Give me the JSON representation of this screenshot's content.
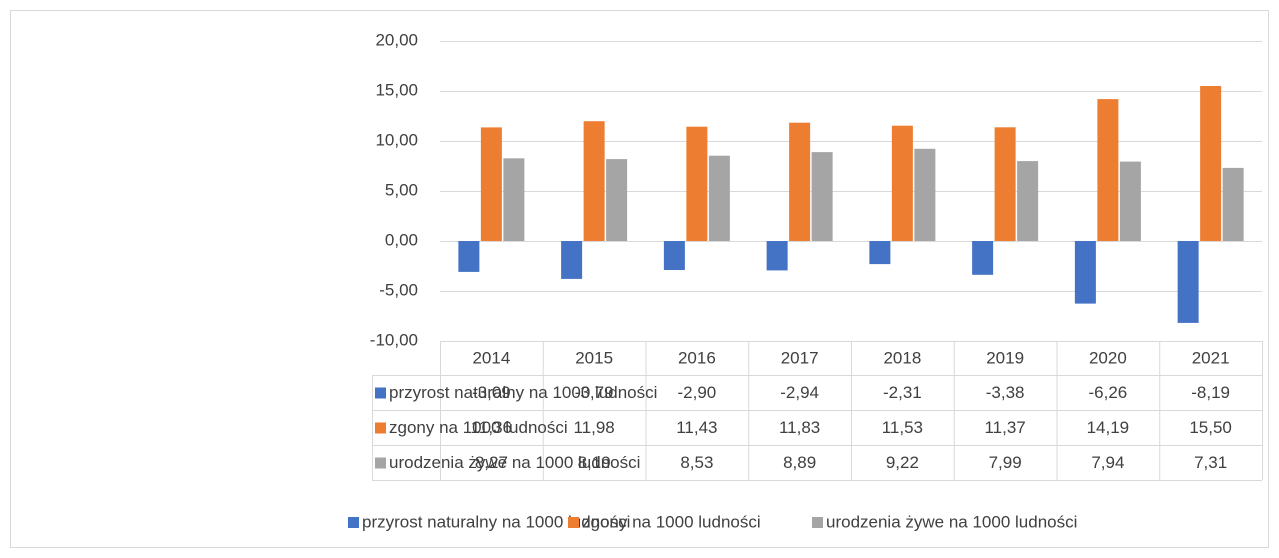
{
  "chart_data": {
    "type": "bar",
    "categories": [
      "2014",
      "2015",
      "2016",
      "2017",
      "2018",
      "2019",
      "2020",
      "2021"
    ],
    "series": [
      {
        "name": "przyrost naturalny na 1000 ludności",
        "color": "#4472c4",
        "values": [
          -3.09,
          -3.79,
          -2.9,
          -2.94,
          -2.31,
          -3.38,
          -6.26,
          -8.19
        ],
        "value_labels": [
          "-3,09",
          "-3,79",
          "-2,90",
          "-2,94",
          "-2,31",
          "-3,38",
          "-6,26",
          "-8,19"
        ]
      },
      {
        "name": "zgony na 1000 ludności",
        "color": "#ed7d31",
        "values": [
          11.36,
          11.98,
          11.43,
          11.83,
          11.53,
          11.37,
          14.19,
          15.5
        ],
        "value_labels": [
          "11,36",
          "11,98",
          "11,43",
          "11,83",
          "11,53",
          "11,37",
          "14,19",
          "15,50"
        ]
      },
      {
        "name": "urodzenia żywe na 1000 ludności",
        "color": "#a5a5a5",
        "values": [
          8.27,
          8.19,
          8.53,
          8.89,
          9.22,
          7.99,
          7.94,
          7.31
        ],
        "value_labels": [
          "8,27",
          "8,19",
          "8,53",
          "8,89",
          "9,22",
          "7,99",
          "7,94",
          "7,31"
        ]
      }
    ],
    "ylim": [
      -10,
      20
    ],
    "yticks": [
      {
        "value": -10,
        "label": "-10,00"
      },
      {
        "value": -5,
        "label": "-5,00"
      },
      {
        "value": 0,
        "label": "0,00"
      },
      {
        "value": 5,
        "label": "5,00"
      },
      {
        "value": 10,
        "label": "10,00"
      },
      {
        "value": 15,
        "label": "15,00"
      },
      {
        "value": 20,
        "label": "20,00"
      }
    ],
    "grid": true,
    "legend": "bottom",
    "data_table": true
  }
}
